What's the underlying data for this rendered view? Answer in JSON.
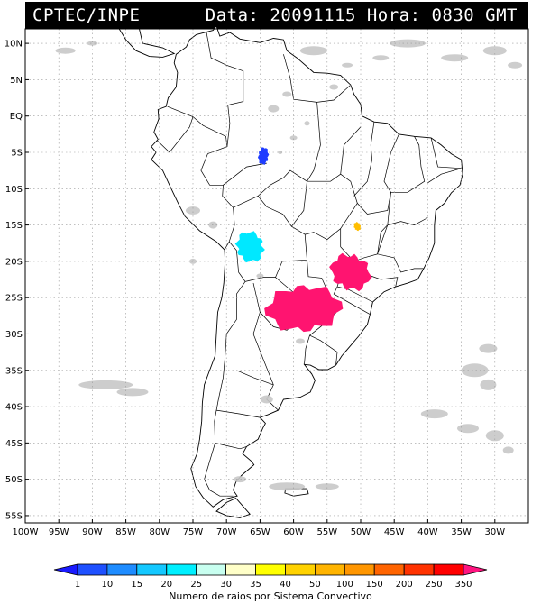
{
  "header": {
    "source": "CPTEC/INPE",
    "date_label": "Data:",
    "date": "20091115",
    "hour_label": "Hora:",
    "hour": "0830",
    "tz": "GMT"
  },
  "map": {
    "region": "South America",
    "lon_range": [
      -100,
      -25
    ],
    "lat_range": [
      -56,
      12
    ],
    "lat_labels": [
      "10N",
      "5N",
      "EQ",
      "5S",
      "10S",
      "15S",
      "20S",
      "25S",
      "30S",
      "35S",
      "40S",
      "45S",
      "50S",
      "55S"
    ],
    "lat_values": [
      10,
      5,
      0,
      -5,
      -10,
      -15,
      -20,
      -25,
      -30,
      -35,
      -40,
      -45,
      -50,
      -55
    ],
    "lon_labels": [
      "100W",
      "95W",
      "90W",
      "85W",
      "80W",
      "75W",
      "70W",
      "65W",
      "60W",
      "55W",
      "50W",
      "45W",
      "40W",
      "35W",
      "30W"
    ],
    "lon_values": [
      -100,
      -95,
      -90,
      -85,
      -80,
      -75,
      -70,
      -65,
      -60,
      -55,
      -50,
      -45,
      -40,
      -35,
      -30
    ],
    "grid": "dotted"
  },
  "systems": [
    {
      "name": "convective-system-amazon",
      "lon": -64.5,
      "lat": -5.5,
      "color": "#1e3cff",
      "class": "1-10"
    },
    {
      "name": "convective-system-bolivia",
      "lon": -66.5,
      "lat": -18,
      "color": "#00e8ff",
      "class": "25-30"
    },
    {
      "name": "convective-system-goias",
      "lon": -50.5,
      "lat": -15.2,
      "color": "#ffbe00",
      "class": "50-100"
    },
    {
      "name": "convective-system-sao-paulo",
      "lon": -51.5,
      "lat": -21.5,
      "color": "#ff1470",
      "class": ">350"
    },
    {
      "name": "convective-system-paraguay",
      "lon": -58.5,
      "lat": -26.5,
      "color": "#ff1470",
      "class": ">350"
    }
  ],
  "colorbar": {
    "labels": [
      "1",
      "10",
      "15",
      "20",
      "25",
      "30",
      "35",
      "40",
      "50",
      "100",
      "150",
      "200",
      "250",
      "350"
    ],
    "colors": [
      "#1a1aff",
      "#1e50ff",
      "#1e8cff",
      "#14c8ff",
      "#00f0ff",
      "#c8fff0",
      "#ffffc8",
      "#ffff00",
      "#ffd200",
      "#ffb400",
      "#ff9600",
      "#ff6400",
      "#ff3200",
      "#ff0000",
      "#ff1480"
    ],
    "caption": "Numero de raios por Sistema Convectivo"
  }
}
